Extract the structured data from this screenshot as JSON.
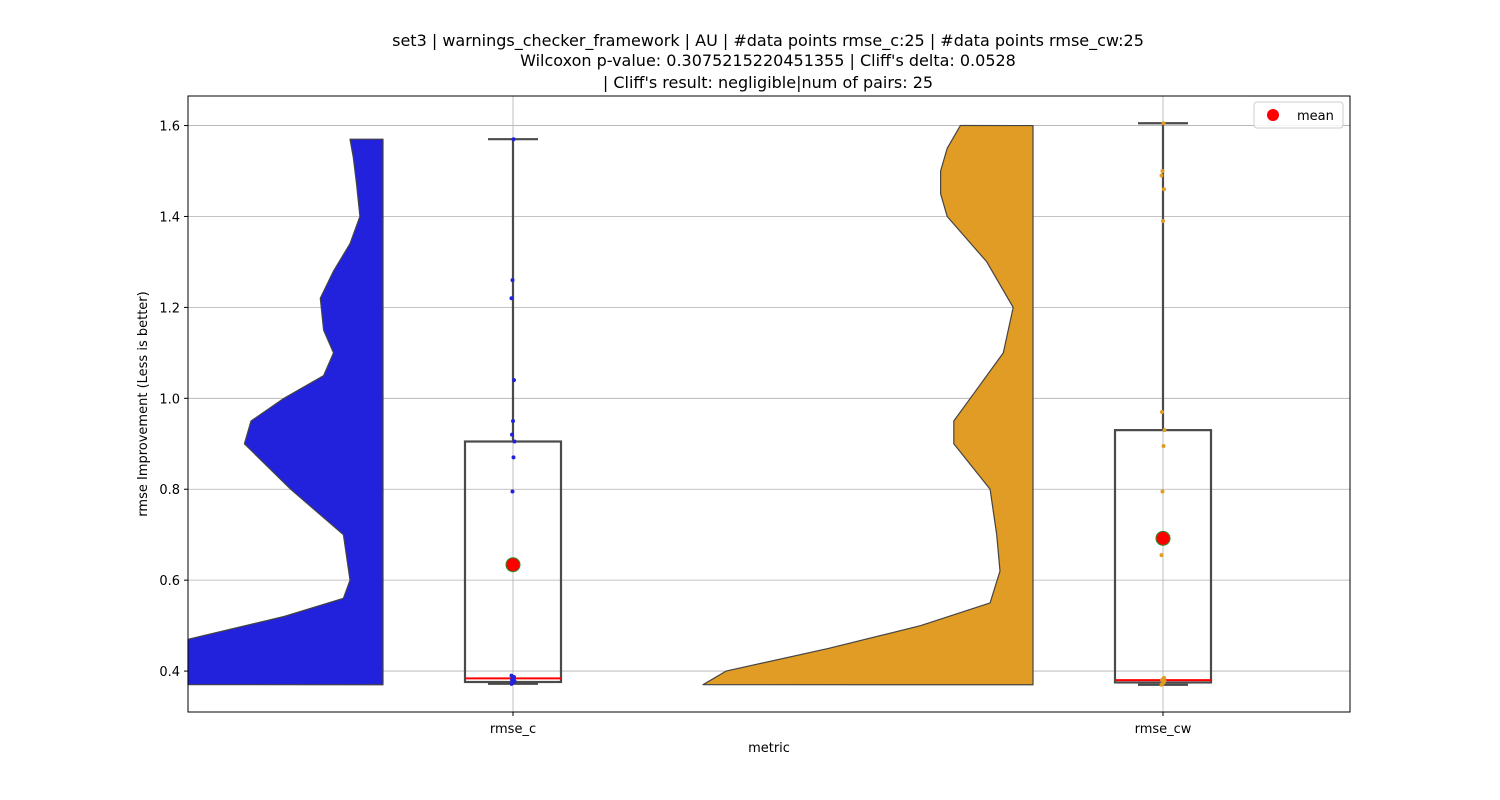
{
  "chart_data": {
    "type": "violin+box",
    "title_lines": [
      "set3 | warnings_checker_framework | AU | #data points rmse_c:25 | #data points rmse_cw:25",
      "Wilcoxon p-value: 0.3075215220451355 | Cliff's delta: 0.0528",
      "| Cliff's result: negligible|num of pairs: 25"
    ],
    "xlabel": "metric",
    "ylabel": "rmse Improvement (Less is better)",
    "ylim": [
      0.31,
      1.665
    ],
    "yticks": [
      0.4,
      0.6,
      0.8,
      1.0,
      1.2,
      1.4,
      1.6
    ],
    "ytick_labels": [
      "0.4",
      "0.6",
      "0.8",
      "1.0",
      "1.2",
      "1.4",
      "1.6"
    ],
    "grid": true,
    "legend": {
      "position": "top-right",
      "entries": [
        {
          "label": "mean",
          "color": "#ff0000"
        }
      ]
    },
    "categories": [
      "rmse_c",
      "rmse_cw"
    ],
    "groups": [
      {
        "name": "rmse_c",
        "violin_color": "#2222dd",
        "point_color": "#2222dd",
        "violin_profile": [
          [
            0.37,
            1.0
          ],
          [
            0.42,
            0.95
          ],
          [
            0.47,
            0.65
          ],
          [
            0.52,
            0.3
          ],
          [
            0.56,
            0.12
          ],
          [
            0.6,
            0.1
          ],
          [
            0.7,
            0.12
          ],
          [
            0.8,
            0.28
          ],
          [
            0.9,
            0.42
          ],
          [
            0.95,
            0.4
          ],
          [
            1.0,
            0.3
          ],
          [
            1.05,
            0.18
          ],
          [
            1.1,
            0.15
          ],
          [
            1.15,
            0.18
          ],
          [
            1.22,
            0.19
          ],
          [
            1.28,
            0.15
          ],
          [
            1.34,
            0.1
          ],
          [
            1.4,
            0.07
          ],
          [
            1.47,
            0.08
          ],
          [
            1.53,
            0.09
          ],
          [
            1.57,
            0.1
          ]
        ],
        "box": {
          "min": 0.372,
          "q1": 0.376,
          "median": 0.384,
          "q3": 0.905,
          "max": 1.57
        },
        "mean": 0.634,
        "points": [
          0.372,
          0.374,
          0.376,
          0.378,
          0.381,
          0.384,
          0.387,
          0.39,
          0.795,
          0.87,
          0.905,
          0.92,
          0.95,
          1.04,
          1.22,
          1.26,
          1.57
        ]
      },
      {
        "name": "rmse_cw",
        "violin_color": "#e09c24",
        "point_color": "#e09c24",
        "violin_profile": [
          [
            0.37,
            1.0
          ],
          [
            0.4,
            0.93
          ],
          [
            0.45,
            0.62
          ],
          [
            0.5,
            0.34
          ],
          [
            0.55,
            0.13
          ],
          [
            0.62,
            0.1
          ],
          [
            0.7,
            0.11
          ],
          [
            0.8,
            0.13
          ],
          [
            0.9,
            0.24
          ],
          [
            0.95,
            0.24
          ],
          [
            1.0,
            0.19
          ],
          [
            1.1,
            0.09
          ],
          [
            1.2,
            0.06
          ],
          [
            1.3,
            0.14
          ],
          [
            1.4,
            0.26
          ],
          [
            1.45,
            0.28
          ],
          [
            1.5,
            0.28
          ],
          [
            1.55,
            0.26
          ],
          [
            1.6,
            0.22
          ]
        ],
        "box": {
          "min": 0.37,
          "q1": 0.375,
          "median": 0.38,
          "q3": 0.93,
          "max": 1.605
        },
        "mean": 0.692,
        "points": [
          0.37,
          0.372,
          0.375,
          0.378,
          0.38,
          0.382,
          0.385,
          0.655,
          0.795,
          0.895,
          0.93,
          0.97,
          1.39,
          1.46,
          1.49,
          1.5,
          1.605
        ]
      }
    ]
  }
}
